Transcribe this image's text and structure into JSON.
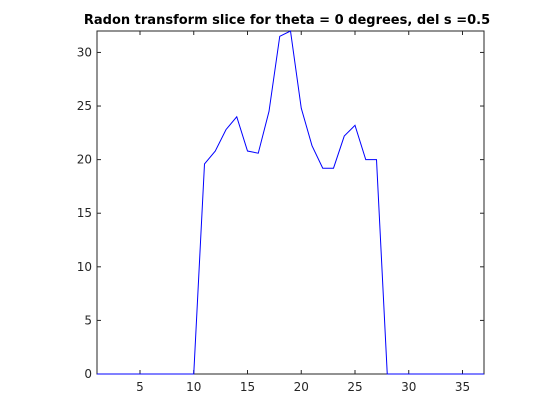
{
  "chart_data": {
    "type": "line",
    "title": "Radon transform slice for theta = 0 degrees, del s =0.5",
    "xlabel": "",
    "ylabel": "",
    "xlim": [
      1,
      37
    ],
    "ylim": [
      0,
      32
    ],
    "xticks": [
      5,
      10,
      15,
      20,
      25,
      30,
      35
    ],
    "yticks": [
      0,
      5,
      10,
      15,
      20,
      25,
      30
    ],
    "grid": false,
    "line_color": "#0000ff",
    "series": [
      {
        "x": [
          1,
          2,
          3,
          4,
          5,
          6,
          7,
          8,
          9,
          10,
          11,
          12,
          13,
          14,
          15,
          16,
          17,
          18,
          19,
          20,
          21,
          22,
          23,
          24,
          25,
          26,
          27,
          28,
          29,
          30,
          31,
          32,
          33,
          34,
          35,
          36,
          37
        ],
        "y": [
          0,
          0,
          0,
          0,
          0,
          0,
          0,
          0,
          0,
          0,
          19.6,
          20.8,
          22.8,
          24.0,
          20.8,
          20.6,
          24.5,
          31.5,
          32.0,
          24.8,
          21.3,
          19.2,
          19.2,
          22.2,
          23.2,
          20.0,
          20.0,
          0,
          0,
          0,
          0,
          0,
          0,
          0,
          0,
          0,
          0
        ]
      }
    ]
  }
}
